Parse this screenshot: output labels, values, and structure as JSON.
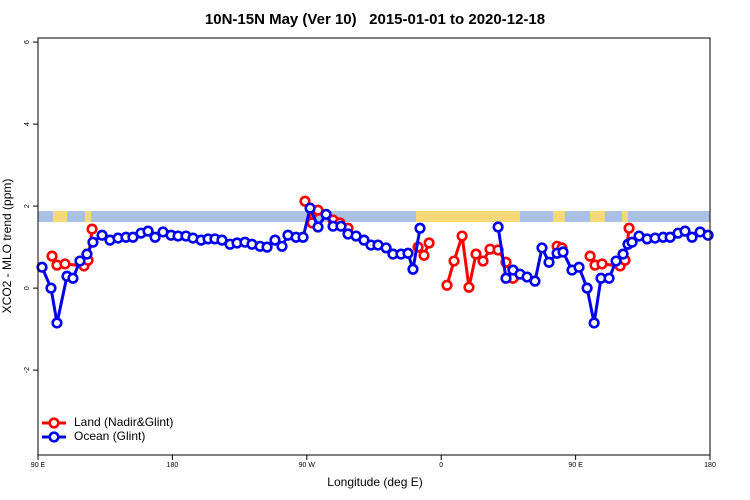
{
  "chart_data": {
    "type": "line",
    "title": "10N-15N May (Ver 10)   2015-01-01 to 2020-12-18",
    "x_label": "Longitude (deg E)",
    "y_label": "XCO2 - MLO trend (ppm)",
    "xlim": [
      90,
      540
    ],
    "ylim": [
      -4.07,
      6.1
    ],
    "xticks": [
      {
        "value": 90,
        "label": "90 E"
      },
      180,
      {
        "value": 270,
        "label": "90 W"
      },
      {
        "value": 360,
        "label": "0"
      },
      {
        "value": 450,
        "label": "90 E"
      },
      {
        "value": 540,
        "label": "180"
      }
    ],
    "yticks": [
      6,
      4,
      2,
      0,
      -2
    ],
    "legend": "bottom-left",
    "series": [
      {
        "name": "Land (Nadir&Glint)",
        "color": "#ff0000",
        "x": [
          99.4,
          102.7,
          108.1,
          120.8,
          123.5,
          126.2,
          200,
          268.8,
          273.5,
          277.5,
          287.6,
          292.2,
          297.6,
          320,
          344.5,
          348.5,
          351.9,
          358,
          363.9,
          368.6,
          374.0,
          378.6,
          383.3,
          388.0,
          392.7,
          398.1,
          403.4,
          408.1,
          420,
          437.6,
          440.9,
          450,
          459.7,
          463.0,
          467.7,
          479.8,
          483.1,
          485.8
        ],
        "values": [
          0.78,
          0.56,
          0.59,
          0.54,
          0.68,
          1.44,
          null,
          2.12,
          1.59,
          1.9,
          1.66,
          1.59,
          1.46,
          null,
          1.0,
          0.8,
          1.1,
          null,
          0.07,
          0.66,
          1.27,
          0.02,
          0.83,
          0.66,
          0.95,
          0.93,
          0.63,
          0.24,
          null,
          1.02,
          0.98,
          null,
          0.78,
          0.56,
          0.59,
          0.54,
          0.68,
          1.46
        ]
      },
      {
        "name": "Ocean (Glint)",
        "color": "#0000ee",
        "x": [
          92.7,
          98.7,
          102.7,
          109.4,
          113.4,
          118.1,
          122.8,
          126.8,
          132.9,
          138.2,
          143.6,
          148.9,
          153.6,
          159.0,
          163.7,
          168.4,
          173.7,
          179.1,
          183.8,
          189.1,
          193.8,
          199.2,
          203.9,
          208.5,
          213.2,
          218.6,
          223.3,
          228.6,
          233.3,
          238.7,
          243.4,
          248.7,
          253.4,
          257.4,
          262.8,
          267.5,
          272.2,
          277.5,
          282.9,
          287.6,
          292.9,
          297.6,
          303.0,
          308.3,
          313.0,
          317.7,
          323.1,
          327.7,
          333.1,
          337.8,
          341.1,
          345.8,
          370,
          398.1,
          403.4,
          408.1,
          412.8,
          417.5,
          422.8,
          427.5,
          432.2,
          437.6,
          441.6,
          447.6,
          452.3,
          457.7,
          462.4,
          467.0,
          472.4,
          477.1,
          481.8,
          485.1,
          487.8,
          492.5,
          497.9,
          503.2,
          508.6,
          513.3,
          518.6,
          523.3,
          528.0,
          533.4,
          538.7
        ],
        "values": [
          0.51,
          0,
          -0.85,
          0.29,
          0.24,
          0.66,
          0.83,
          1.12,
          1.29,
          1.17,
          1.22,
          1.24,
          1.24,
          1.34,
          1.39,
          1.24,
          1.37,
          1.29,
          1.27,
          1.27,
          1.22,
          1.17,
          1.2,
          1.2,
          1.17,
          1.07,
          1.1,
          1.12,
          1.07,
          1.02,
          1.0,
          1.17,
          1.02,
          1.29,
          1.24,
          1.24,
          1.95,
          1.49,
          1.8,
          1.51,
          1.51,
          1.32,
          1.27,
          1.17,
          1.05,
          1.05,
          0.98,
          0.83,
          0.83,
          0.85,
          0.46,
          1.46,
          null,
          1.49,
          0.24,
          0.44,
          0.34,
          0.27,
          0.17,
          0.98,
          0.63,
          0.85,
          0.88,
          0.44,
          0.51,
          0,
          -0.85,
          0.24,
          0.24,
          0.66,
          0.83,
          1.07,
          1.12,
          1.27,
          1.2,
          1.22,
          1.24,
          1.24,
          1.34,
          1.39,
          1.24,
          1.37,
          1.29
        ]
      }
    ]
  }
}
